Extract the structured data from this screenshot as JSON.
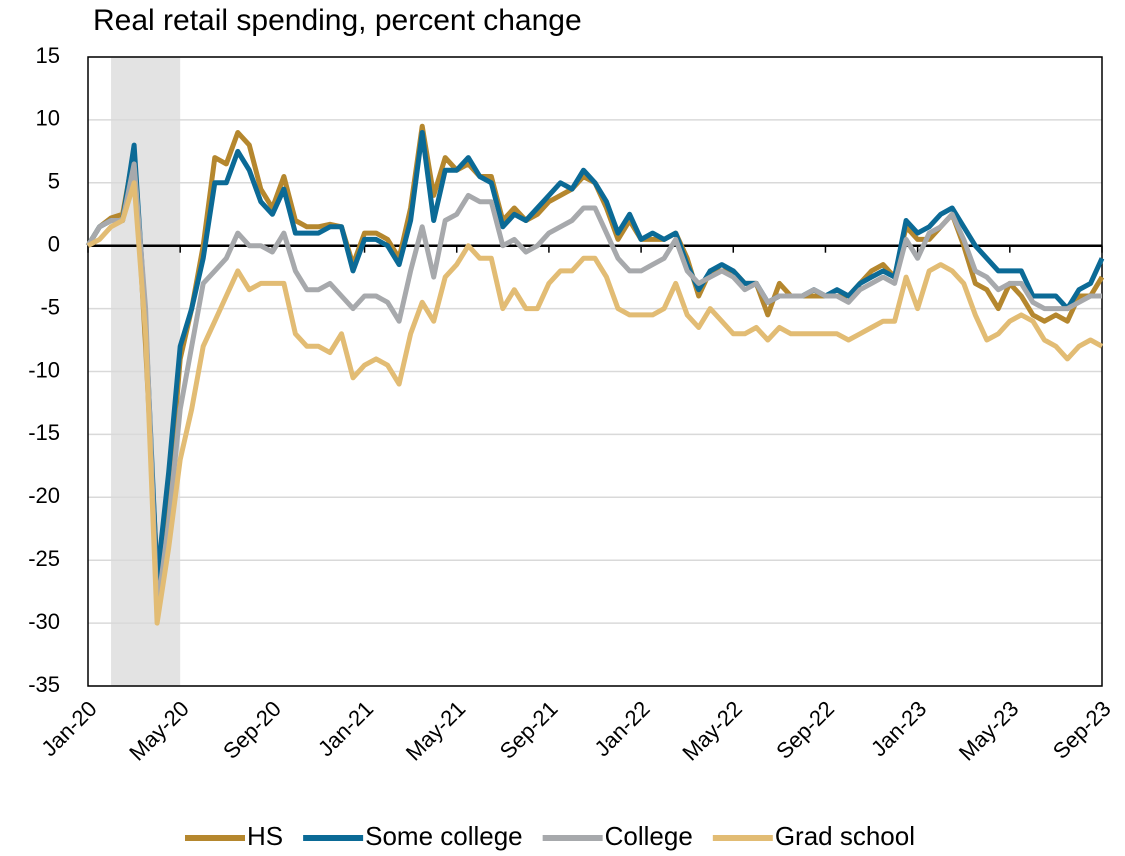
{
  "chart_data": {
    "type": "line",
    "title": "Real retail spending, percent change",
    "categories": [
      "Jan-20",
      null,
      null,
      null,
      null,
      null,
      null,
      null,
      "May-20",
      null,
      null,
      null,
      null,
      null,
      null,
      null,
      "Sep-20",
      null,
      null,
      null,
      null,
      null,
      null,
      null,
      "Jan-21",
      null,
      null,
      null,
      null,
      null,
      null,
      null,
      "May-21",
      null,
      null,
      null,
      null,
      null,
      null,
      null,
      "Sep-21",
      null,
      null,
      null,
      null,
      null,
      null,
      null,
      "Jan-22",
      null,
      null,
      null,
      null,
      null,
      null,
      null,
      "May-22",
      null,
      null,
      null,
      null,
      null,
      null,
      null,
      "Sep-22",
      null,
      null,
      null,
      null,
      null,
      null,
      null,
      "Jan-23",
      null,
      null,
      null,
      null,
      null,
      null,
      null,
      "May-23",
      null,
      null,
      null,
      null,
      null,
      null,
      null,
      "Sep-23"
    ],
    "series": [
      {
        "name": "HS",
        "color": "#b5872e",
        "values": [
          0,
          1.5,
          2.2,
          2.5,
          7.5,
          -8,
          -26,
          -20,
          -9,
          -5,
          0,
          7,
          6.5,
          9,
          8,
          4.5,
          3,
          5.5,
          2,
          1.5,
          1.5,
          1.7,
          1.5,
          -1.5,
          1,
          1,
          0.5,
          -1,
          3,
          9.5,
          4,
          7,
          6,
          6.5,
          5.5,
          5.5,
          2,
          3,
          2,
          2.5,
          3.5,
          4,
          4.5,
          5.5,
          5,
          3,
          0.5,
          2,
          0.5,
          0.5,
          0.5,
          1,
          -1,
          -4,
          -2,
          -2,
          -2,
          -3,
          -3,
          -5.5,
          -3,
          -4,
          -4,
          -4,
          -4,
          -4,
          -4,
          -3,
          -2,
          -1.5,
          -2.5,
          1.5,
          0.5,
          0.5,
          1.5,
          2.5,
          0,
          -3,
          -3.5,
          -5,
          -3,
          -4,
          -5.5,
          -6,
          -5.5,
          -6,
          -4,
          -4,
          -2.5
        ]
      },
      {
        "name": "Some college",
        "color": "#0b6a96",
        "values": [
          0,
          1.5,
          2,
          2,
          8,
          -6,
          -26.5,
          -18,
          -8,
          -5,
          -1,
          5,
          5,
          7.5,
          6,
          3.5,
          2.5,
          4.5,
          1,
          1,
          1,
          1.5,
          1.5,
          -2,
          0.5,
          0.5,
          0,
          -1.5,
          2,
          9,
          2,
          6,
          6,
          7,
          5.5,
          5,
          1.5,
          2.5,
          2,
          3,
          4,
          5,
          4.5,
          6,
          5,
          3.5,
          1,
          2.5,
          0.5,
          1,
          0.5,
          1,
          -1.5,
          -3.5,
          -2,
          -1.5,
          -2,
          -3,
          -3,
          -4.5,
          -4,
          -4,
          -4,
          -3.5,
          -4,
          -3.5,
          -4,
          -3,
          -2.5,
          -2,
          -2.5,
          2,
          1,
          1.5,
          2.5,
          3,
          1.5,
          0,
          -1,
          -2,
          -2,
          -2,
          -4,
          -4,
          -4,
          -5,
          -3.5,
          -3,
          -1
        ]
      },
      {
        "name": "College",
        "color": "#a7a9ac",
        "values": [
          0,
          1.5,
          2,
          2,
          6.5,
          -5,
          -29,
          -22,
          -13,
          -8,
          -3,
          -2,
          -1,
          1,
          0,
          0,
          -0.5,
          1,
          -2,
          -3.5,
          -3.5,
          -3,
          -4,
          -5,
          -4,
          -4,
          -4.5,
          -6,
          -2,
          1.5,
          -2.5,
          2,
          2.5,
          4,
          3.5,
          3.5,
          0,
          0.5,
          -0.5,
          0,
          1,
          1.5,
          2,
          3,
          3,
          1,
          -1,
          -2,
          -2,
          -1.5,
          -1,
          0.5,
          -2,
          -3,
          -2.5,
          -2,
          -2.5,
          -3.5,
          -3,
          -4.5,
          -4,
          -4,
          -4,
          -3.5,
          -4,
          -4,
          -4.5,
          -3.5,
          -3,
          -2.5,
          -3,
          0.5,
          -1,
          1,
          1.5,
          2.5,
          0.5,
          -2,
          -2.5,
          -3.5,
          -3,
          -3,
          -4.5,
          -5,
          -5,
          -5,
          -4.5,
          -4,
          -4
        ]
      },
      {
        "name": "Grad school",
        "color": "#e2bc74",
        "values": [
          0,
          0.5,
          1.5,
          2,
          5,
          -7,
          -30,
          -24,
          -17,
          -13,
          -8,
          -6,
          -4,
          -2,
          -3.5,
          -3,
          -3,
          -3,
          -7,
          -8,
          -8,
          -8.5,
          -7,
          -10.5,
          -9.5,
          -9,
          -9.5,
          -11,
          -7,
          -4.5,
          -6,
          -2.5,
          -1.5,
          0,
          -1,
          -1,
          -5,
          -3.5,
          -5,
          -5,
          -3,
          -2,
          -2,
          -1,
          -1,
          -2.5,
          -5,
          -5.5,
          -5.5,
          -5.5,
          -5,
          -3,
          -5.5,
          -6.5,
          -5,
          -6,
          -7,
          -7,
          -6.5,
          -7.5,
          -6.5,
          -7,
          -7,
          -7,
          -7,
          -7,
          -7.5,
          -7,
          -6.5,
          -6,
          -6,
          -2.5,
          -5,
          -2,
          -1.5,
          -2,
          -3,
          -5.5,
          -7.5,
          -7,
          -6,
          -5.5,
          -6,
          -7.5,
          -8,
          -9,
          -8,
          -7.5,
          -8
        ]
      }
    ],
    "ylim": [
      -35,
      15
    ],
    "yticks": [
      -35,
      -30,
      -25,
      -20,
      -15,
      -10,
      -5,
      0,
      5,
      10,
      15
    ],
    "grid": true,
    "recession_shading": {
      "from": 2,
      "to": 8
    },
    "legend": "bottom"
  }
}
